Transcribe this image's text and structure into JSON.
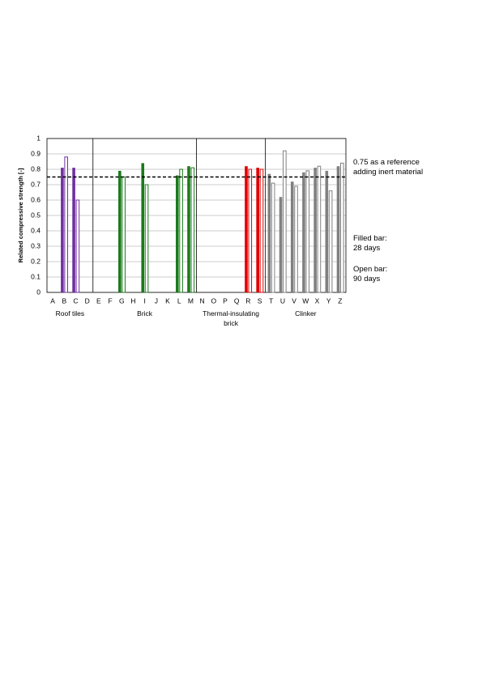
{
  "chart_data": {
    "type": "bar",
    "y_label": "Related compressive strength [-]",
    "categories": [
      "A",
      "B",
      "C",
      "D",
      "E",
      "F",
      "G",
      "H",
      "I",
      "J",
      "K",
      "L",
      "M",
      "N",
      "O",
      "P",
      "Q",
      "R",
      "S",
      "T",
      "U",
      "V",
      "W",
      "X",
      "Y",
      "Z"
    ],
    "series": [
      {
        "fill": true,
        "values": [
          null,
          0.81,
          0.81,
          null,
          null,
          null,
          0.79,
          null,
          0.84,
          null,
          null,
          0.76,
          0.82,
          null,
          null,
          null,
          null,
          0.82,
          0.81,
          0.77,
          0.62,
          0.72,
          0.78,
          0.81,
          0.79,
          0.82
        ]
      },
      {
        "fill": false,
        "values": [
          null,
          0.88,
          0.6,
          null,
          null,
          null,
          0.75,
          null,
          0.7,
          null,
          null,
          0.8,
          0.81,
          null,
          null,
          null,
          null,
          0.8,
          0.8,
          0.71,
          0.92,
          0.69,
          0.79,
          0.82,
          0.66,
          0.84
        ]
      }
    ],
    "groups": [
      {
        "label": "Roof tiles",
        "start": 0,
        "end": 3,
        "color": "#7030a0"
      },
      {
        "label": "Brick",
        "start": 4,
        "end": 12,
        "color": "#1a7a1a"
      },
      {
        "label": "Thermal-insulating brick",
        "start": 13,
        "end": 18,
        "color": "#e00000"
      },
      {
        "label": "Clinker",
        "start": 19,
        "end": 25,
        "color": "#808080"
      }
    ],
    "reference_line": 0.75,
    "annotations": [
      [
        "0.75 as a reference",
        "adding inert material"
      ],
      [
        "Filled bar:",
        "28 days"
      ],
      [
        "Open bar:",
        "90 days"
      ]
    ],
    "ylim": [
      0,
      1
    ],
    "yticks": [
      0,
      0.1,
      0.2,
      0.3,
      0.4,
      0.5,
      0.6,
      0.7,
      0.8,
      0.9,
      1
    ],
    "grid": true
  }
}
